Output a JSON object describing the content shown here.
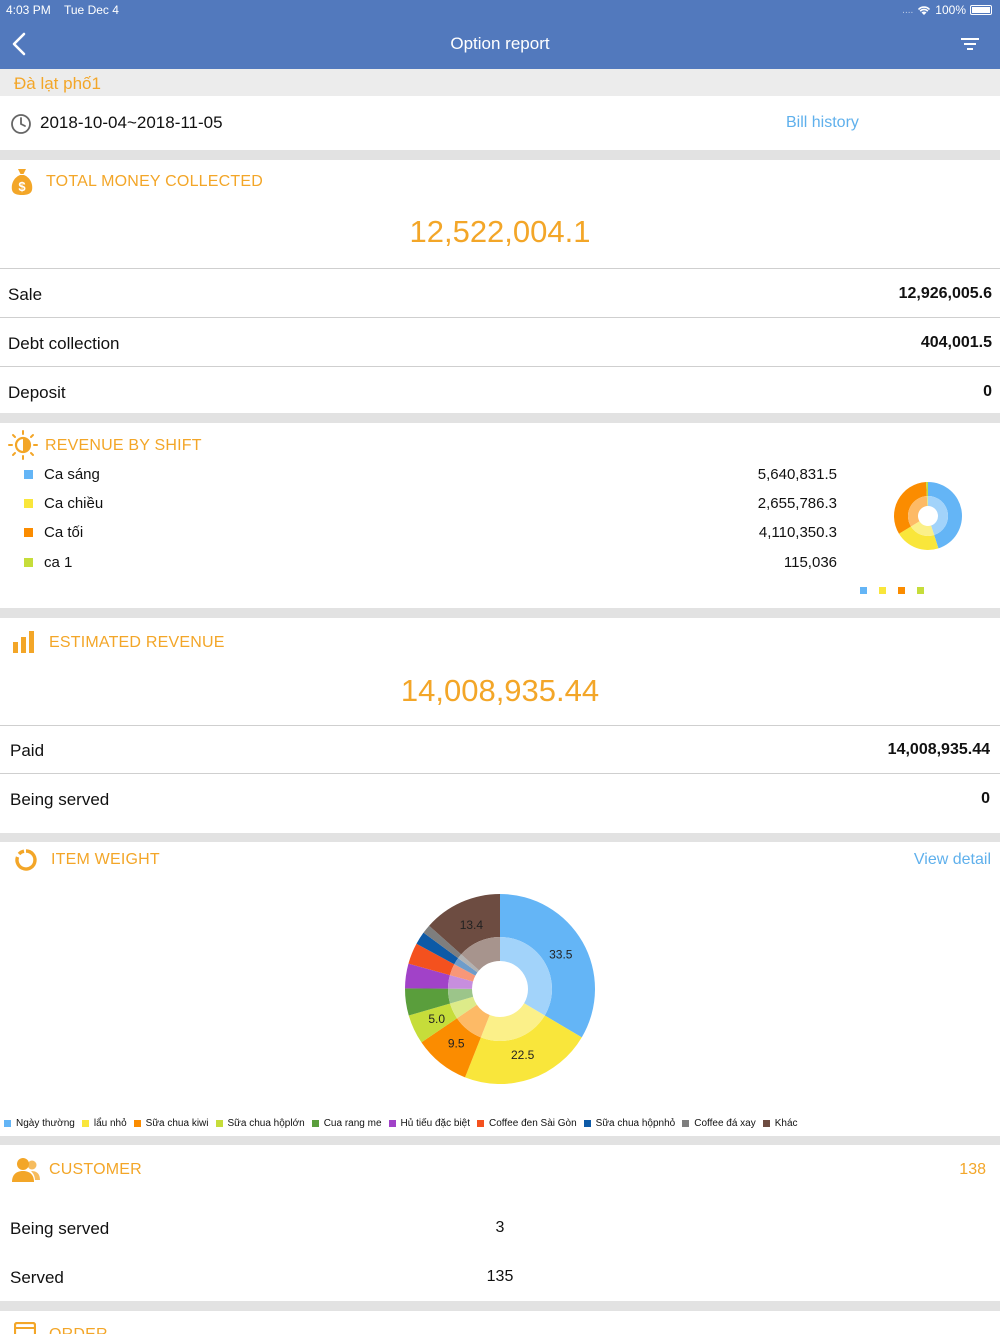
{
  "status": {
    "time": "4:03 PM",
    "date": "Tue Dec 4",
    "signal": "....",
    "battery": "100%"
  },
  "nav": {
    "title": "Option report",
    "back_icon": "chevron-left-icon",
    "filter_icon": "filter-icon"
  },
  "store_name": "Đà lạt phố1",
  "date_range": "2018-10-04~2018-11-05",
  "bill_history": "Bill history",
  "total_money": {
    "title": "TOTAL MONEY COLLECTED",
    "amount": "12,522,004.1",
    "rows": [
      {
        "label": "Sale",
        "value": "12,926,005.6"
      },
      {
        "label": "Debt collection",
        "value": "404,001.5"
      },
      {
        "label": "Deposit",
        "value": "0"
      }
    ]
  },
  "revenue_by_shift": {
    "title": "REVENUE BY SHIFT",
    "items": [
      {
        "label": "Ca sáng",
        "value": "5,640,831.5",
        "color": "#64b5f6"
      },
      {
        "label": "Ca chiều",
        "value": "2,655,786.3",
        "color": "#f9e63b"
      },
      {
        "label": "Ca tối",
        "value": "4,110,350.3",
        "color": "#fb8c00"
      },
      {
        "label": "ca 1",
        "value": "115,036",
        "color": "#c6dd3a"
      }
    ]
  },
  "estimated_revenue": {
    "title": "ESTIMATED REVENUE",
    "amount": "14,008,935.44",
    "rows": [
      {
        "label": "Paid",
        "value": "14,008,935.44"
      },
      {
        "label": "Being served",
        "value": "0"
      }
    ]
  },
  "item_weight": {
    "title": "ITEM WEIGHT",
    "view_detail": "View detail"
  },
  "chart_data": [
    {
      "type": "pie",
      "title": "",
      "categories": [
        "Ca sáng",
        "Ca chiều",
        "Ca tối",
        "ca 1"
      ],
      "values": [
        5640831.5,
        2655786.3,
        4110350.3,
        115036
      ],
      "colors": [
        "#64b5f6",
        "#f9e63b",
        "#fb8c00",
        "#c6dd3a"
      ],
      "donut": true
    },
    {
      "type": "pie",
      "title": "",
      "categories": [
        "Ngày thường",
        "lẩu nhỏ",
        "Sữa chua kiwi",
        "Sữa chua hộplớn",
        "Cua rang me",
        "Hủ tiếu đặc biệt",
        "Coffee đen Sài Gòn",
        "Sữa chua hộpnhỏ",
        "Coffee đá xay",
        "Khác"
      ],
      "values": [
        33.5,
        22.5,
        9.5,
        5.0,
        4.6,
        4.2,
        3.6,
        2.2,
        1.5,
        13.4
      ],
      "data_labels": [
        "33.5",
        "22.5",
        "9.5",
        "5.0",
        "",
        "",
        "",
        "",
        "",
        "13.4"
      ],
      "colors": [
        "#64b5f6",
        "#f9e63b",
        "#fb8c00",
        "#c6dd3a",
        "#5a9e3c",
        "#a142c8",
        "#f4511e",
        "#0d5aa7",
        "#7e7e7e",
        "#6d4c41"
      ],
      "donut": true,
      "legend": "bottom"
    }
  ],
  "customer": {
    "title": "CUSTOMER",
    "count": "138",
    "rows": [
      {
        "label": "Being served",
        "value": "3"
      },
      {
        "label": "Served",
        "value": "135"
      }
    ]
  },
  "order": {
    "title": "ORDER"
  }
}
